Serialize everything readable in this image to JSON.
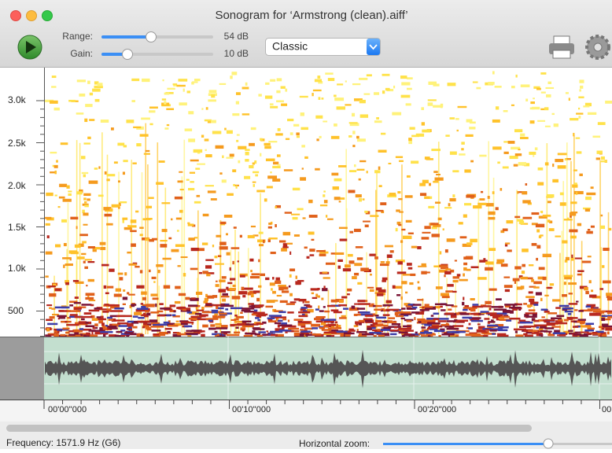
{
  "window": {
    "title": "Sonogram for ‘Armstrong (clean).aiff’"
  },
  "toolbar": {
    "range_label": "Range:",
    "range_value": "54 dB",
    "gain_label": "Gain:",
    "gain_value": "10 dB",
    "palette": "Classic"
  },
  "frequency_axis": {
    "labels": [
      "3.0k",
      "2.5k",
      "2.0k",
      "1.5k",
      "1.0k",
      "500"
    ]
  },
  "time_axis": {
    "labels": [
      "00'00''000",
      "00'10''000",
      "00'20''000",
      "00"
    ]
  },
  "status": {
    "frequency": "Frequency: 1571.9 Hz (G6)",
    "zoom_label": "Horizontal zoom:"
  }
}
